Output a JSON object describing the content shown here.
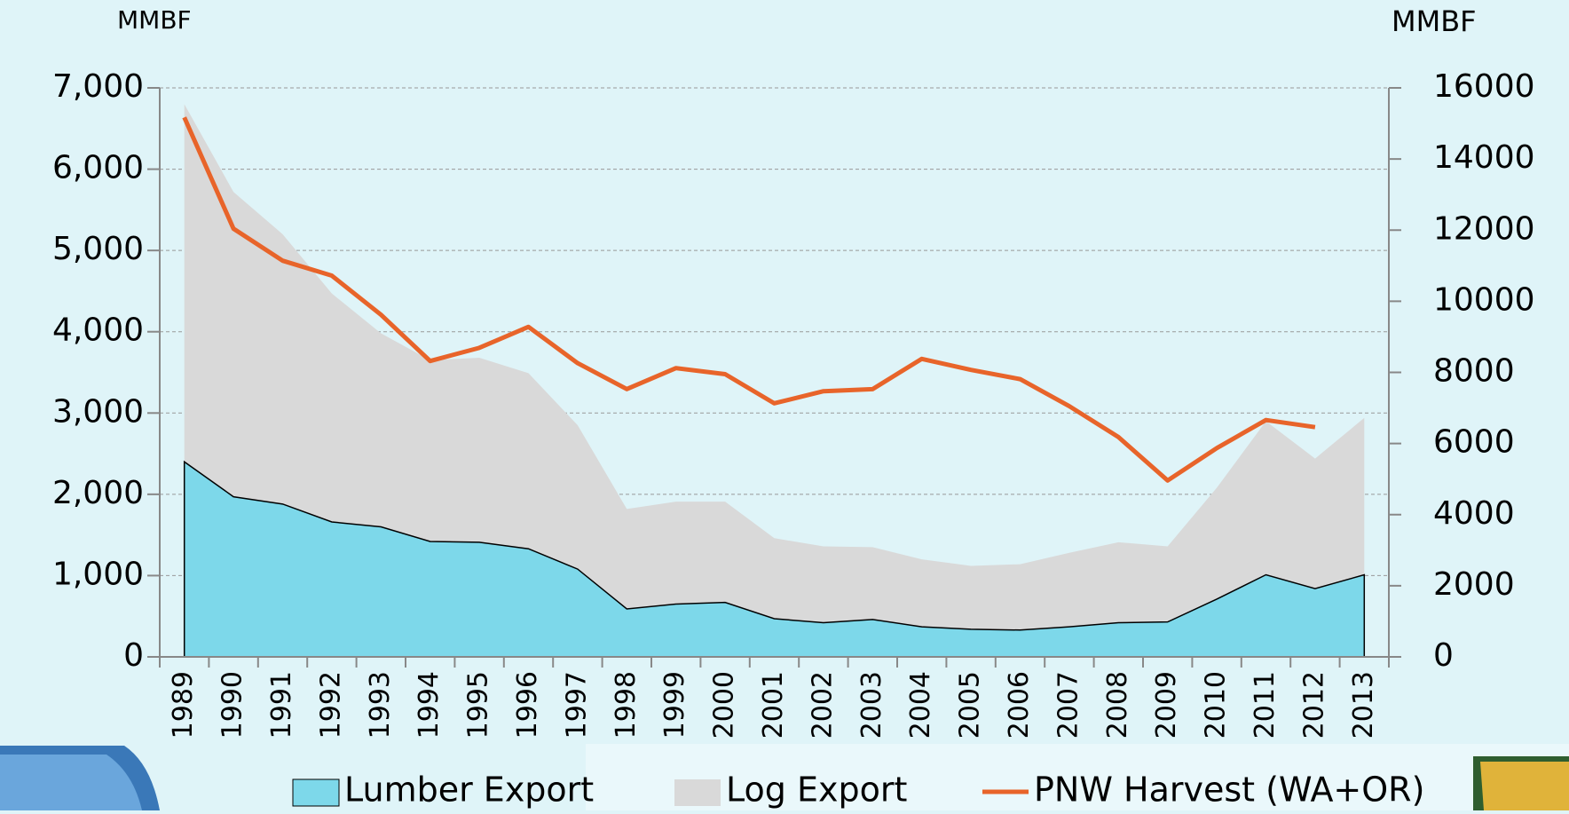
{
  "chart_data": {
    "type": "stacked-area-line",
    "y_label": "MMBF",
    "y2_label": "MMBF",
    "categories": [
      "1989",
      "1990",
      "1991",
      "1992",
      "1993",
      "1994",
      "1995",
      "1996",
      "1997",
      "1998",
      "1999",
      "2000",
      "2001",
      "2002",
      "2003",
      "2004",
      "2005",
      "2006",
      "2007",
      "2008",
      "2009",
      "2010",
      "2011",
      "2012",
      "2013"
    ],
    "series": [
      {
        "name": "Lumber Export",
        "color": "#7dd8ea",
        "kind": "area",
        "values": [
          2400,
          1970,
          1880,
          1660,
          1600,
          1420,
          1410,
          1330,
          1080,
          590,
          650,
          670,
          470,
          420,
          460,
          370,
          340,
          330,
          370,
          420,
          430,
          710,
          1010,
          840,
          1010
        ]
      },
      {
        "name": "Log Export",
        "color": "#d9d9d9",
        "kind": "area",
        "values": [
          4400,
          3750,
          3320,
          2810,
          2380,
          2230,
          2270,
          2160,
          1770,
          1230,
          1260,
          1240,
          990,
          940,
          890,
          830,
          780,
          810,
          910,
          990,
          930,
          1370,
          1890,
          1600,
          1930
        ]
      },
      {
        "name": "PNW Harvest (WA+OR)",
        "color": "#e8642a",
        "kind": "line",
        "axis": "y2",
        "values": [
          15170,
          12040,
          11140,
          10720,
          9620,
          8320,
          8690,
          9280,
          8260,
          7530,
          8120,
          7950,
          7130,
          7470,
          7530,
          8380,
          8070,
          7810,
          7050,
          6180,
          4960,
          5870,
          6660,
          6460,
          null
        ]
      }
    ],
    "ylim": [
      0,
      7000
    ],
    "yticks": [
      0,
      {
        "value": 1000,
        "label": "1,000"
      },
      {
        "value": 2000,
        "label": "2,000"
      },
      {
        "value": 3000,
        "label": "3,000"
      },
      {
        "value": 4000,
        "label": "4,000"
      },
      {
        "value": 5000,
        "label": "5,000"
      },
      {
        "value": 6000,
        "label": "6,000"
      },
      {
        "value": 7000,
        "label": "7,000"
      }
    ],
    "y2lim": [
      0,
      16000
    ],
    "y2ticks": [
      0,
      2000,
      4000,
      6000,
      8000,
      10000,
      12000,
      14000,
      16000
    ],
    "grid": true
  }
}
